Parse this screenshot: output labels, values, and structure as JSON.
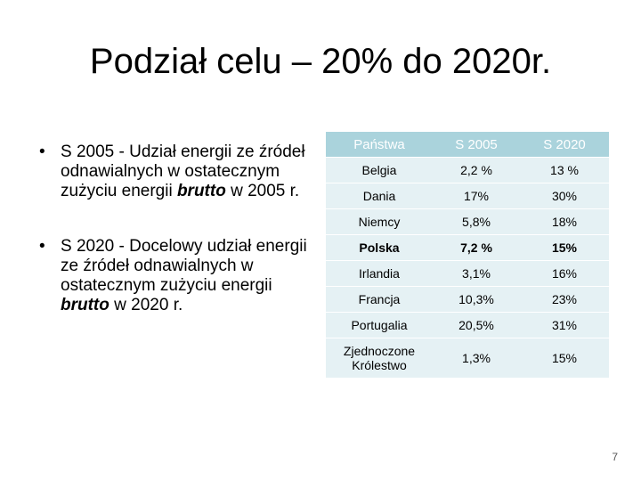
{
  "slide": {
    "title": "Podział celu – 20% do 2020r.",
    "page_number": "7"
  },
  "bullets": [
    {
      "before": "S 2005 - Udział energii ze źródeł odnawialnych w ostatecznym zużyciu energii ",
      "emphasis": "brutto",
      "after": " w 2005 r."
    },
    {
      "before": "S 2020 - Docelowy udział energii ze źródeł odnawialnych w ostatecznym zużyciu energii ",
      "emphasis": "brutto",
      "after": " w 2020 r."
    }
  ],
  "table": {
    "headers": [
      "Państwa",
      "S 2005",
      "S 2020"
    ],
    "rows": [
      [
        "Belgia",
        "2,2 %",
        "13 %"
      ],
      [
        "Dania",
        "17%",
        "30%"
      ],
      [
        "Niemcy",
        "5,8%",
        "18%"
      ],
      [
        "Polska",
        "7,2 %",
        "15%"
      ],
      [
        "Irlandia",
        "3,1%",
        "16%"
      ],
      [
        "Francja",
        "10,3%",
        "23%"
      ],
      [
        "Portugalia",
        "20,5%",
        "31%"
      ],
      [
        "Zjednoczone Królestwo",
        "1,3%",
        "15%"
      ]
    ]
  },
  "colors": {
    "header_bg": "#aad3dc",
    "row_bg": "#e5f1f4"
  }
}
